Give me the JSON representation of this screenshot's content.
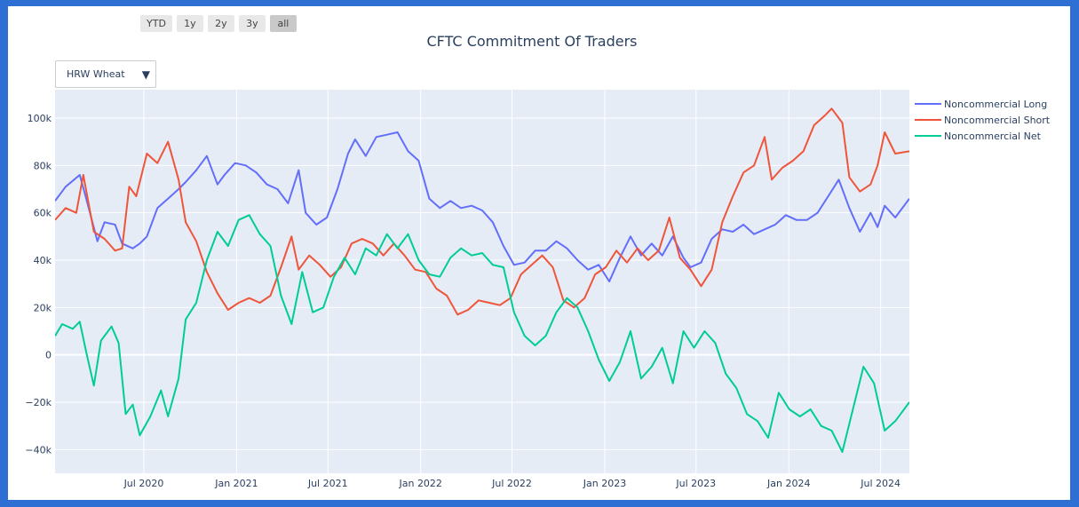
{
  "range_buttons": [
    {
      "label": "YTD",
      "active": false
    },
    {
      "label": "1y",
      "active": false
    },
    {
      "label": "2y",
      "active": false
    },
    {
      "label": "3y",
      "active": false
    },
    {
      "label": "all",
      "active": true
    }
  ],
  "dropdown": {
    "selected": "HRW Wheat"
  },
  "colors": {
    "long": "#636efa",
    "short": "#ef553b",
    "net": "#00cc96",
    "plot_bg": "#e5ecf6",
    "frame": "#2e6fd3"
  },
  "chart_data": {
    "type": "line",
    "title": "CFTC Commitment Of Traders",
    "xlim": [
      "2020-01-07",
      "2024-08-27"
    ],
    "ylim": [
      -50000,
      112000
    ],
    "grid": true,
    "legend_placement": "top-right",
    "x_ticks": [
      "2020-07-01",
      "2021-01-01",
      "2021-07-01",
      "2022-01-01",
      "2022-07-01",
      "2023-01-01",
      "2023-07-01",
      "2024-01-01",
      "2024-07-01"
    ],
    "x_tick_labels": [
      "Jul 2020",
      "Jan 2021",
      "Jul 2021",
      "Jan 2022",
      "Jul 2022",
      "Jan 2023",
      "Jul 2023",
      "Jan 2024",
      "Jul 2024"
    ],
    "y_ticks": [
      -40000,
      -20000,
      0,
      20000,
      40000,
      60000,
      80000,
      100000
    ],
    "y_tick_labels": [
      "−40k",
      "−20k",
      "0",
      "20k",
      "40k",
      "60k",
      "80k",
      "100k"
    ],
    "series": [
      {
        "name": "Noncommercial Long",
        "key": "long",
        "points": [
          [
            "2020-01-07",
            65000
          ],
          [
            "2020-01-28",
            71000
          ],
          [
            "2020-02-25",
            76000
          ],
          [
            "2020-03-10",
            65000
          ],
          [
            "2020-03-31",
            48000
          ],
          [
            "2020-04-14",
            56000
          ],
          [
            "2020-05-05",
            55000
          ],
          [
            "2020-05-19",
            47000
          ],
          [
            "2020-06-09",
            45000
          ],
          [
            "2020-06-23",
            47000
          ],
          [
            "2020-07-07",
            50000
          ],
          [
            "2020-07-28",
            62000
          ],
          [
            "2020-08-18",
            66000
          ],
          [
            "2020-09-08",
            70000
          ],
          [
            "2020-09-22",
            73000
          ],
          [
            "2020-10-13",
            78000
          ],
          [
            "2020-11-03",
            84000
          ],
          [
            "2020-11-24",
            72000
          ],
          [
            "2020-12-08",
            76000
          ],
          [
            "2020-12-29",
            81000
          ],
          [
            "2021-01-19",
            80000
          ],
          [
            "2021-02-09",
            77000
          ],
          [
            "2021-03-02",
            72000
          ],
          [
            "2021-03-23",
            70000
          ],
          [
            "2021-04-13",
            64000
          ],
          [
            "2021-05-04",
            78000
          ],
          [
            "2021-05-18",
            60000
          ],
          [
            "2021-06-08",
            55000
          ],
          [
            "2021-06-29",
            58000
          ],
          [
            "2021-07-20",
            70000
          ],
          [
            "2021-08-10",
            85000
          ],
          [
            "2021-08-24",
            91000
          ],
          [
            "2021-09-14",
            84000
          ],
          [
            "2021-10-05",
            92000
          ],
          [
            "2021-10-26",
            93000
          ],
          [
            "2021-11-16",
            94000
          ],
          [
            "2021-12-07",
            86000
          ],
          [
            "2021-12-28",
            82000
          ],
          [
            "2022-01-18",
            66000
          ],
          [
            "2022-02-08",
            62000
          ],
          [
            "2022-03-01",
            65000
          ],
          [
            "2022-03-22",
            62000
          ],
          [
            "2022-04-12",
            63000
          ],
          [
            "2022-05-03",
            61000
          ],
          [
            "2022-05-24",
            56000
          ],
          [
            "2022-06-14",
            46000
          ],
          [
            "2022-07-05",
            38000
          ],
          [
            "2022-07-26",
            39000
          ],
          [
            "2022-08-16",
            44000
          ],
          [
            "2022-09-06",
            44000
          ],
          [
            "2022-09-27",
            48000
          ],
          [
            "2022-10-18",
            45000
          ],
          [
            "2022-11-08",
            40000
          ],
          [
            "2022-11-29",
            36000
          ],
          [
            "2022-12-20",
            38000
          ],
          [
            "2023-01-10",
            31000
          ],
          [
            "2023-01-31",
            41000
          ],
          [
            "2023-02-21",
            50000
          ],
          [
            "2023-03-14",
            42000
          ],
          [
            "2023-04-04",
            47000
          ],
          [
            "2023-04-25",
            42000
          ],
          [
            "2023-05-16",
            50000
          ],
          [
            "2023-06-06",
            41000
          ],
          [
            "2023-06-20",
            37000
          ],
          [
            "2023-07-11",
            39000
          ],
          [
            "2023-08-01",
            49000
          ],
          [
            "2023-08-22",
            53000
          ],
          [
            "2023-09-12",
            52000
          ],
          [
            "2023-10-03",
            55000
          ],
          [
            "2023-10-24",
            51000
          ],
          [
            "2023-11-14",
            53000
          ],
          [
            "2023-12-05",
            55000
          ],
          [
            "2023-12-26",
            59000
          ],
          [
            "2024-01-16",
            57000
          ],
          [
            "2024-02-06",
            57000
          ],
          [
            "2024-02-27",
            60000
          ],
          [
            "2024-03-19",
            67000
          ],
          [
            "2024-04-09",
            74000
          ],
          [
            "2024-04-30",
            62000
          ],
          [
            "2024-05-21",
            52000
          ],
          [
            "2024-06-11",
            60000
          ],
          [
            "2024-06-25",
            54000
          ],
          [
            "2024-07-09",
            63000
          ],
          [
            "2024-07-30",
            58000
          ],
          [
            "2024-08-27",
            66000
          ]
        ]
      },
      {
        "name": "Noncommercial Short",
        "key": "short",
        "points": [
          [
            "2020-01-07",
            57000
          ],
          [
            "2020-01-28",
            62000
          ],
          [
            "2020-02-18",
            60000
          ],
          [
            "2020-03-03",
            76000
          ],
          [
            "2020-03-24",
            52000
          ],
          [
            "2020-04-14",
            49000
          ],
          [
            "2020-05-05",
            44000
          ],
          [
            "2020-05-19",
            45000
          ],
          [
            "2020-06-02",
            71000
          ],
          [
            "2020-06-16",
            67000
          ],
          [
            "2020-07-07",
            85000
          ],
          [
            "2020-07-28",
            81000
          ],
          [
            "2020-08-18",
            90000
          ],
          [
            "2020-09-08",
            74000
          ],
          [
            "2020-09-22",
            56000
          ],
          [
            "2020-10-13",
            48000
          ],
          [
            "2020-11-03",
            35000
          ],
          [
            "2020-11-24",
            26000
          ],
          [
            "2020-12-15",
            19000
          ],
          [
            "2021-01-05",
            22000
          ],
          [
            "2021-01-26",
            24000
          ],
          [
            "2021-02-16",
            22000
          ],
          [
            "2021-03-09",
            25000
          ],
          [
            "2021-03-30",
            37000
          ],
          [
            "2021-04-20",
            50000
          ],
          [
            "2021-05-04",
            36000
          ],
          [
            "2021-05-25",
            42000
          ],
          [
            "2021-06-15",
            38000
          ],
          [
            "2021-07-06",
            33000
          ],
          [
            "2021-07-27",
            37000
          ],
          [
            "2021-08-17",
            47000
          ],
          [
            "2021-09-07",
            49000
          ],
          [
            "2021-09-28",
            47000
          ],
          [
            "2021-10-19",
            42000
          ],
          [
            "2021-11-09",
            47000
          ],
          [
            "2021-11-30",
            42000
          ],
          [
            "2021-12-21",
            36000
          ],
          [
            "2022-01-11",
            35000
          ],
          [
            "2022-02-01",
            28000
          ],
          [
            "2022-02-22",
            25000
          ],
          [
            "2022-03-15",
            17000
          ],
          [
            "2022-04-05",
            19000
          ],
          [
            "2022-04-26",
            23000
          ],
          [
            "2022-05-17",
            22000
          ],
          [
            "2022-06-07",
            21000
          ],
          [
            "2022-06-28",
            24000
          ],
          [
            "2022-07-19",
            34000
          ],
          [
            "2022-08-09",
            38000
          ],
          [
            "2022-08-30",
            42000
          ],
          [
            "2022-09-20",
            37000
          ],
          [
            "2022-10-11",
            23000
          ],
          [
            "2022-11-01",
            20000
          ],
          [
            "2022-11-22",
            24000
          ],
          [
            "2022-12-13",
            34000
          ],
          [
            "2023-01-03",
            37000
          ],
          [
            "2023-01-24",
            44000
          ],
          [
            "2023-02-14",
            39000
          ],
          [
            "2023-03-07",
            45000
          ],
          [
            "2023-03-28",
            40000
          ],
          [
            "2023-04-18",
            44000
          ],
          [
            "2023-05-09",
            58000
          ],
          [
            "2023-05-30",
            41000
          ],
          [
            "2023-06-20",
            36000
          ],
          [
            "2023-07-11",
            29000
          ],
          [
            "2023-08-01",
            36000
          ],
          [
            "2023-08-22",
            56000
          ],
          [
            "2023-09-12",
            67000
          ],
          [
            "2023-10-03",
            77000
          ],
          [
            "2023-10-24",
            80000
          ],
          [
            "2023-11-14",
            92000
          ],
          [
            "2023-11-28",
            74000
          ],
          [
            "2023-12-19",
            79000
          ],
          [
            "2024-01-09",
            82000
          ],
          [
            "2024-01-30",
            86000
          ],
          [
            "2024-02-20",
            97000
          ],
          [
            "2024-03-12",
            101000
          ],
          [
            "2024-03-26",
            104000
          ],
          [
            "2024-04-16",
            98000
          ],
          [
            "2024-04-30",
            75000
          ],
          [
            "2024-05-21",
            69000
          ],
          [
            "2024-06-11",
            72000
          ],
          [
            "2024-06-25",
            80000
          ],
          [
            "2024-07-09",
            94000
          ],
          [
            "2024-07-30",
            85000
          ],
          [
            "2024-08-27",
            86000
          ]
        ]
      },
      {
        "name": "Noncommercial Net",
        "key": "net",
        "points": [
          [
            "2020-01-07",
            8000
          ],
          [
            "2020-01-21",
            13000
          ],
          [
            "2020-02-11",
            11000
          ],
          [
            "2020-02-25",
            14000
          ],
          [
            "2020-03-10",
            0
          ],
          [
            "2020-03-24",
            -13000
          ],
          [
            "2020-04-07",
            6000
          ],
          [
            "2020-04-28",
            12000
          ],
          [
            "2020-05-12",
            5000
          ],
          [
            "2020-05-26",
            -25000
          ],
          [
            "2020-06-09",
            -21000
          ],
          [
            "2020-06-23",
            -34000
          ],
          [
            "2020-07-14",
            -26000
          ],
          [
            "2020-08-04",
            -15000
          ],
          [
            "2020-08-18",
            -26000
          ],
          [
            "2020-09-08",
            -10000
          ],
          [
            "2020-09-22",
            15000
          ],
          [
            "2020-10-13",
            22000
          ],
          [
            "2020-11-03",
            40000
          ],
          [
            "2020-11-24",
            52000
          ],
          [
            "2020-12-15",
            46000
          ],
          [
            "2021-01-05",
            57000
          ],
          [
            "2021-01-26",
            59000
          ],
          [
            "2021-02-16",
            51000
          ],
          [
            "2021-03-09",
            46000
          ],
          [
            "2021-03-30",
            25000
          ],
          [
            "2021-04-20",
            13000
          ],
          [
            "2021-05-11",
            35000
          ],
          [
            "2021-06-01",
            18000
          ],
          [
            "2021-06-22",
            20000
          ],
          [
            "2021-07-13",
            33000
          ],
          [
            "2021-08-03",
            41000
          ],
          [
            "2021-08-24",
            34000
          ],
          [
            "2021-09-14",
            45000
          ],
          [
            "2021-10-05",
            42000
          ],
          [
            "2021-10-26",
            51000
          ],
          [
            "2021-11-16",
            45000
          ],
          [
            "2021-12-07",
            51000
          ],
          [
            "2021-12-28",
            40000
          ],
          [
            "2022-01-18",
            34000
          ],
          [
            "2022-02-08",
            33000
          ],
          [
            "2022-03-01",
            41000
          ],
          [
            "2022-03-22",
            45000
          ],
          [
            "2022-04-12",
            42000
          ],
          [
            "2022-05-03",
            43000
          ],
          [
            "2022-05-24",
            38000
          ],
          [
            "2022-06-14",
            37000
          ],
          [
            "2022-07-05",
            18000
          ],
          [
            "2022-07-26",
            8000
          ],
          [
            "2022-08-16",
            4000
          ],
          [
            "2022-09-06",
            8000
          ],
          [
            "2022-09-27",
            18000
          ],
          [
            "2022-10-18",
            24000
          ],
          [
            "2022-11-08",
            20000
          ],
          [
            "2022-11-29",
            10000
          ],
          [
            "2022-12-20",
            -2000
          ],
          [
            "2023-01-10",
            -11000
          ],
          [
            "2023-01-31",
            -3000
          ],
          [
            "2023-02-21",
            10000
          ],
          [
            "2023-03-14",
            -10000
          ],
          [
            "2023-04-04",
            -5000
          ],
          [
            "2023-04-25",
            3000
          ],
          [
            "2023-05-16",
            -12000
          ],
          [
            "2023-06-06",
            10000
          ],
          [
            "2023-06-27",
            3000
          ],
          [
            "2023-07-18",
            10000
          ],
          [
            "2023-08-08",
            5000
          ],
          [
            "2023-08-29",
            -8000
          ],
          [
            "2023-09-19",
            -14000
          ],
          [
            "2023-10-10",
            -25000
          ],
          [
            "2023-10-31",
            -28000
          ],
          [
            "2023-11-21",
            -35000
          ],
          [
            "2023-12-12",
            -16000
          ],
          [
            "2024-01-02",
            -23000
          ],
          [
            "2024-01-23",
            -26000
          ],
          [
            "2024-02-13",
            -23000
          ],
          [
            "2024-03-05",
            -30000
          ],
          [
            "2024-03-26",
            -32000
          ],
          [
            "2024-04-16",
            -41000
          ],
          [
            "2024-05-07",
            -23000
          ],
          [
            "2024-05-28",
            -5000
          ],
          [
            "2024-06-18",
            -12000
          ],
          [
            "2024-07-09",
            -32000
          ],
          [
            "2024-07-30",
            -28000
          ],
          [
            "2024-08-27",
            -20000
          ]
        ]
      }
    ]
  }
}
